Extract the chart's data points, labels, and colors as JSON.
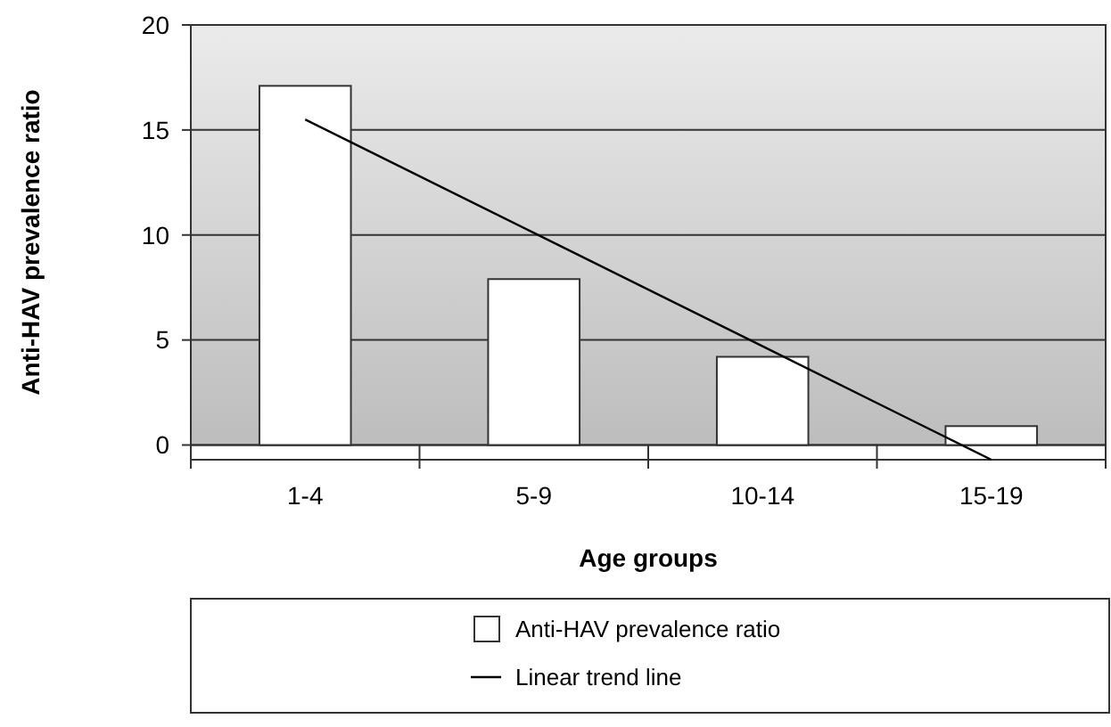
{
  "chart_data": {
    "type": "bar",
    "xlabel": "Age groups",
    "ylabel": "Anti-HAV prevalence ratio",
    "categories": [
      "1-4",
      "5-9",
      "10-14",
      "15-19"
    ],
    "series": [
      {
        "name": "Anti-HAV prevalence ratio",
        "color": "#ffffff",
        "values": [
          17.1,
          7.9,
          4.2,
          0.9
        ]
      },
      {
        "name": "Linear trend line",
        "type": "line",
        "color": "#000000",
        "values": [
          15.5,
          10.1,
          4.7,
          -0.7
        ]
      }
    ],
    "ylim": [
      -0.7,
      20
    ],
    "yticks": [
      0,
      5,
      10,
      15,
      20
    ],
    "grid": "y",
    "legend": "bottom"
  }
}
